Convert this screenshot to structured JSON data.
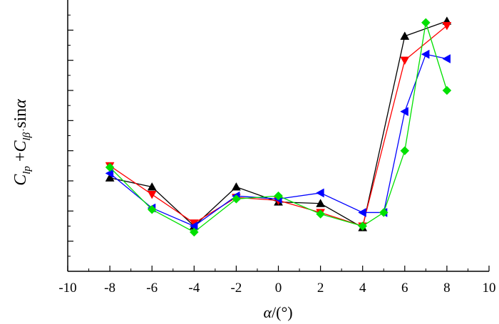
{
  "chart_data": {
    "type": "line",
    "title": "",
    "xlabel": "α/(°)",
    "ylabel": "C_lp + C_lβ̇ sinα",
    "xlim": [
      -10,
      10
    ],
    "ylim": [
      0,
      9
    ],
    "xticks": [
      -10,
      -8,
      -6,
      -4,
      -2,
      0,
      2,
      4,
      6,
      8,
      10
    ],
    "y_tick_labels_shown": false,
    "grid": false,
    "legend": "none",
    "series": [
      {
        "name": "black",
        "color": "#000000",
        "marker": "triangle-up",
        "x": [
          -8,
          -6,
          -4,
          -2,
          0,
          2,
          4,
          6,
          8
        ],
        "y": [
          3.1,
          2.8,
          1.5,
          2.8,
          2.3,
          2.25,
          1.45,
          7.8,
          8.3
        ]
      },
      {
        "name": "red",
        "color": "#ff0000",
        "marker": "triangle-down",
        "x": [
          -8,
          -6,
          -4,
          -2,
          0,
          2,
          4,
          6,
          8
        ],
        "y": [
          3.5,
          2.55,
          1.6,
          2.45,
          2.35,
          1.95,
          1.5,
          7.0,
          8.15
        ]
      },
      {
        "name": "blue",
        "color": "#0000ff",
        "marker": "triangle-left",
        "x": [
          -8,
          -6,
          -4,
          -2,
          0,
          2,
          4,
          5,
          6,
          7,
          8
        ],
        "y": [
          3.25,
          2.1,
          1.5,
          2.5,
          2.4,
          2.6,
          1.95,
          1.95,
          5.3,
          7.2,
          7.05
        ]
      },
      {
        "name": "green",
        "color": "#00e000",
        "marker": "diamond",
        "x": [
          -8,
          -6,
          -4,
          -2,
          0,
          2,
          4,
          5,
          6,
          7,
          8
        ],
        "y": [
          3.45,
          2.05,
          1.3,
          2.4,
          2.5,
          1.9,
          1.5,
          1.95,
          4.0,
          8.25,
          6.0
        ]
      }
    ]
  }
}
